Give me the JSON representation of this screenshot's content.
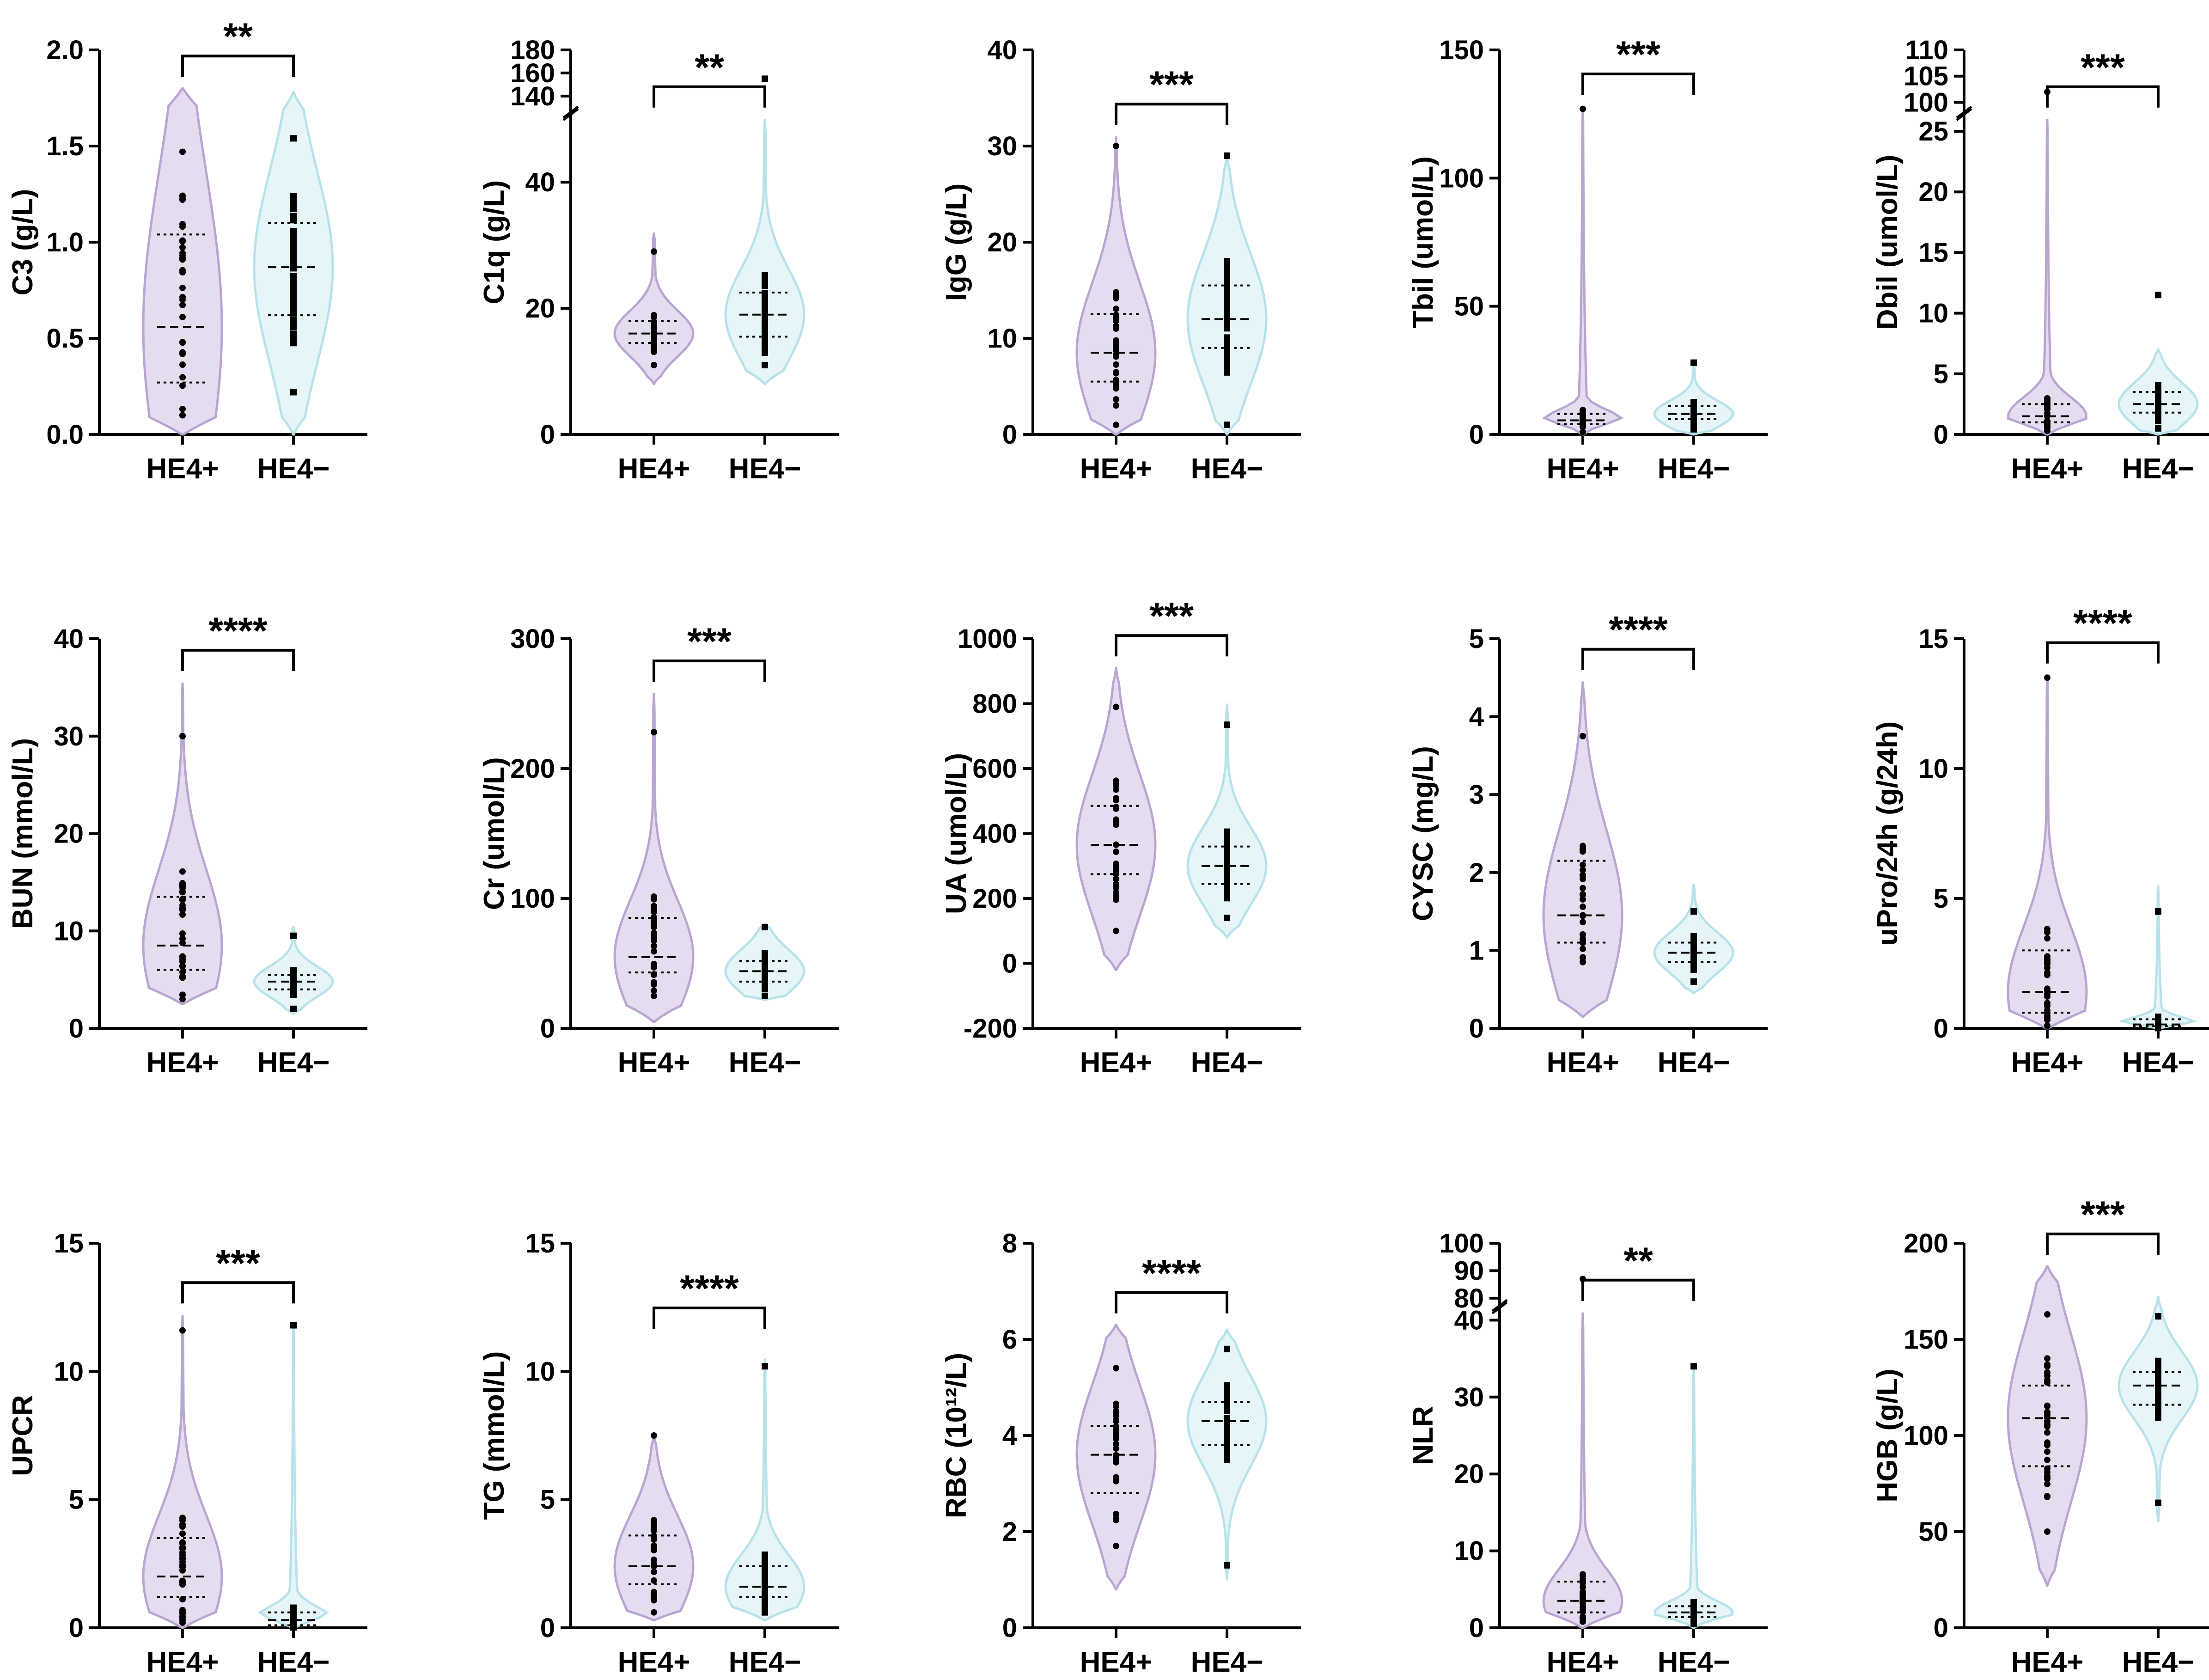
{
  "figure": {
    "description_free": true,
    "colors": {
      "he4_pos_fill": "#e6dcef",
      "he4_pos_stroke": "#b9a5d2",
      "he4_neg_fill": "#e6f5f8",
      "he4_neg_stroke": "#b7e2ea",
      "points": "#000000",
      "axes": "#000000"
    }
  },
  "chart_data": [
    {
      "id": "c3",
      "type": "violin",
      "ylabel": "C3 (g/L)",
      "categories": [
        "HE4+",
        "HE4−"
      ],
      "yticks": [
        0.0,
        0.5,
        1.0,
        1.5,
        2.0
      ],
      "tick_labels": [
        "0.0",
        "0.5",
        "1.0",
        "1.5",
        "2.0"
      ],
      "ylim": [
        0,
        2.0
      ],
      "significance": "**",
      "groups": [
        {
          "name": "HE4+",
          "median": 0.56,
          "q1": 0.27,
          "q3": 1.04,
          "min": 0.1,
          "max": 1.47,
          "vmin": 0.0,
          "vmax": 1.8
        },
        {
          "name": "HE4−",
          "median": 0.87,
          "q1": 0.62,
          "q3": 1.1,
          "min": 0.22,
          "max": 1.54,
          "vmin": 0.0,
          "vmax": 1.78
        }
      ]
    },
    {
      "id": "c1q",
      "type": "violin",
      "ylabel": "C1q (g/L)",
      "categories": [
        "HE4+",
        "HE4−"
      ],
      "yticks": [
        0,
        20,
        40,
        140,
        160,
        180
      ],
      "tick_labels": [
        "0",
        "20",
        "40",
        "140",
        "160",
        "180"
      ],
      "ylim": [
        0,
        180
      ],
      "axis_break": [
        50,
        130
      ],
      "significance": "**",
      "groups": [
        {
          "name": "HE4+",
          "median": 16,
          "q1": 14.5,
          "q3": 18,
          "min": 11,
          "max": 29,
          "vmin": 8,
          "vmax": 32
        },
        {
          "name": "HE4−",
          "median": 19,
          "q1": 15.5,
          "q3": 22.5,
          "min": 11,
          "max": 155,
          "vmin": 8,
          "vmax": 50
        }
      ]
    },
    {
      "id": "igg",
      "type": "violin",
      "ylabel": "IgG (g/L)",
      "categories": [
        "HE4+",
        "HE4−"
      ],
      "yticks": [
        0,
        10,
        20,
        30,
        40
      ],
      "tick_labels": [
        "0",
        "10",
        "20",
        "30",
        "40"
      ],
      "ylim": [
        0,
        40
      ],
      "significance": "***",
      "groups": [
        {
          "name": "HE4+",
          "median": 8.5,
          "q1": 5.5,
          "q3": 12.5,
          "min": 1,
          "max": 30,
          "vmin": 0,
          "vmax": 31
        },
        {
          "name": "HE4−",
          "median": 12,
          "q1": 9,
          "q3": 15.5,
          "min": 1,
          "max": 29,
          "vmin": 0,
          "vmax": 29
        }
      ]
    },
    {
      "id": "tbil",
      "type": "violin",
      "ylabel": "Tbil (umol/L)",
      "categories": [
        "HE4+",
        "HE4−"
      ],
      "yticks": [
        0,
        50,
        100,
        150
      ],
      "tick_labels": [
        "0",
        "50",
        "100",
        "150"
      ],
      "ylim": [
        0,
        150
      ],
      "significance": "***",
      "groups": [
        {
          "name": "HE4+",
          "median": 5.5,
          "q1": 4,
          "q3": 8,
          "min": 1,
          "max": 127,
          "vmin": 0,
          "vmax": 128
        },
        {
          "name": "HE4−",
          "median": 8,
          "q1": 6,
          "q3": 11,
          "min": 2,
          "max": 28,
          "vmin": 0,
          "vmax": 28
        }
      ]
    },
    {
      "id": "dbil",
      "type": "violin",
      "ylabel": "Dbil (umol/L)",
      "categories": [
        "HE4+",
        "HE4−"
      ],
      "yticks": [
        0,
        5,
        10,
        15,
        20,
        25,
        100,
        105,
        110
      ],
      "tick_labels": [
        "0",
        "5",
        "10",
        "15",
        "20",
        "25",
        "100",
        "105",
        "110"
      ],
      "ylim": [
        0,
        110
      ],
      "axis_break": [
        26,
        99
      ],
      "significance": "***",
      "groups": [
        {
          "name": "HE4+",
          "median": 1.5,
          "q1": 1,
          "q3": 2.5,
          "min": 0.3,
          "max": 102,
          "vmin": 0,
          "vmax": 26
        },
        {
          "name": "HE4−",
          "median": 2.5,
          "q1": 1.8,
          "q3": 3.5,
          "min": 0.5,
          "max": 11.5,
          "vmin": 0,
          "vmax": 7
        }
      ]
    },
    {
      "id": "bun",
      "type": "violin",
      "ylabel": "BUN (mmol/L)",
      "categories": [
        "HE4+",
        "HE4−"
      ],
      "yticks": [
        0,
        10,
        20,
        30,
        40
      ],
      "tick_labels": [
        "0",
        "10",
        "20",
        "30",
        "40"
      ],
      "ylim": [
        0,
        40
      ],
      "significance": "****",
      "groups": [
        {
          "name": "HE4+",
          "median": 8.5,
          "q1": 6,
          "q3": 13.5,
          "min": 3,
          "max": 30,
          "vmin": 2.5,
          "vmax": 35.5
        },
        {
          "name": "HE4−",
          "median": 4.8,
          "q1": 4,
          "q3": 5.5,
          "min": 2,
          "max": 9.5,
          "vmin": 1.5,
          "vmax": 10.5
        }
      ]
    },
    {
      "id": "cr",
      "type": "violin",
      "ylabel": "Cr (umol/L)",
      "categories": [
        "HE4+",
        "HE4−"
      ],
      "yticks": [
        0,
        100,
        200,
        300
      ],
      "tick_labels": [
        "0",
        "100",
        "200",
        "300"
      ],
      "ylim": [
        0,
        300
      ],
      "significance": "***",
      "groups": [
        {
          "name": "HE4+",
          "median": 55,
          "q1": 43,
          "q3": 85,
          "min": 25,
          "max": 228,
          "vmin": 5,
          "vmax": 258
        },
        {
          "name": "HE4−",
          "median": 44,
          "q1": 36,
          "q3": 52,
          "min": 25,
          "max": 78,
          "vmin": 22,
          "vmax": 80
        }
      ]
    },
    {
      "id": "ua",
      "type": "violin",
      "ylabel": "UA (umol/L)",
      "categories": [
        "HE4+",
        "HE4−"
      ],
      "yticks": [
        -200,
        0,
        200,
        400,
        600,
        800,
        1000
      ],
      "tick_labels": [
        "-200",
        "0",
        "200",
        "400",
        "600",
        "800",
        "1000"
      ],
      "ylim": [
        -200,
        1000
      ],
      "significance": "***",
      "groups": [
        {
          "name": "HE4+",
          "median": 365,
          "q1": 275,
          "q3": 485,
          "min": 100,
          "max": 790,
          "vmin": -20,
          "vmax": 910
        },
        {
          "name": "HE4−",
          "median": 300,
          "q1": 245,
          "q3": 360,
          "min": 140,
          "max": 735,
          "vmin": 80,
          "vmax": 800
        }
      ]
    },
    {
      "id": "cysc",
      "type": "violin",
      "ylabel": "CYSC (mg/L)",
      "categories": [
        "HE4+",
        "HE4−"
      ],
      "yticks": [
        0,
        1,
        2,
        3,
        4,
        5
      ],
      "tick_labels": [
        "0",
        "1",
        "2",
        "3",
        "4",
        "5"
      ],
      "ylim": [
        0,
        5
      ],
      "significance": "****",
      "groups": [
        {
          "name": "HE4+",
          "median": 1.45,
          "q1": 1.1,
          "q3": 2.15,
          "min": 0.85,
          "max": 3.75,
          "vmin": 0.15,
          "vmax": 4.45
        },
        {
          "name": "HE4−",
          "median": 0.97,
          "q1": 0.85,
          "q3": 1.1,
          "min": 0.6,
          "max": 1.5,
          "vmin": 0.45,
          "vmax": 1.85
        }
      ]
    },
    {
      "id": "upro",
      "type": "violin",
      "ylabel": "uPro/24h (g/24h)",
      "categories": [
        "HE4+",
        "HE4−"
      ],
      "yticks": [
        0,
        5,
        10,
        15
      ],
      "tick_labels": [
        "0",
        "5",
        "10",
        "15"
      ],
      "ylim": [
        0,
        15
      ],
      "significance": "****",
      "groups": [
        {
          "name": "HE4+",
          "median": 1.4,
          "q1": 0.6,
          "q3": 3,
          "min": 0.1,
          "max": 13.5,
          "vmin": 0,
          "vmax": 13.6
        },
        {
          "name": "HE4−",
          "median": 0.15,
          "q1": 0.08,
          "q3": 0.35,
          "min": 0.01,
          "max": 4.5,
          "vmin": 0,
          "vmax": 5.5
        }
      ]
    },
    {
      "id": "upcr",
      "type": "violin",
      "ylabel": "UPCR",
      "categories": [
        "HE4+",
        "HE4−"
      ],
      "yticks": [
        0,
        5,
        10,
        15
      ],
      "tick_labels": [
        "0",
        "5",
        "10",
        "15"
      ],
      "ylim": [
        0,
        15
      ],
      "significance": "***",
      "groups": [
        {
          "name": "HE4+",
          "median": 2,
          "q1": 1.2,
          "q3": 3.5,
          "min": 0.2,
          "max": 11.6,
          "vmin": 0,
          "vmax": 12.2
        },
        {
          "name": "HE4−",
          "median": 0.3,
          "q1": 0.1,
          "q3": 0.6,
          "min": 0.02,
          "max": 11.8,
          "vmin": 0,
          "vmax": 11.9
        }
      ]
    },
    {
      "id": "tg",
      "type": "violin",
      "ylabel": "TG (mmol/L)",
      "categories": [
        "HE4+",
        "HE4−"
      ],
      "yticks": [
        0,
        5,
        10,
        15
      ],
      "tick_labels": [
        "0",
        "5",
        "10",
        "15"
      ],
      "ylim": [
        0,
        15
      ],
      "significance": "****",
      "groups": [
        {
          "name": "HE4+",
          "median": 2.4,
          "q1": 1.7,
          "q3": 3.6,
          "min": 0.6,
          "max": 7.5,
          "vmin": 0.3,
          "vmax": 7.5
        },
        {
          "name": "HE4−",
          "median": 1.6,
          "q1": 1.2,
          "q3": 2.4,
          "min": 0.6,
          "max": 10.2,
          "vmin": 0.3,
          "vmax": 10.5
        }
      ]
    },
    {
      "id": "rbc",
      "type": "violin",
      "ylabel": "RBC (10¹²/L)",
      "categories": [
        "HE4+",
        "HE4−"
      ],
      "yticks": [
        0,
        2,
        4,
        6,
        8
      ],
      "tick_labels": [
        "0",
        "2",
        "4",
        "6",
        "8"
      ],
      "ylim": [
        0,
        8
      ],
      "significance": "****",
      "groups": [
        {
          "name": "HE4+",
          "median": 3.6,
          "q1": 2.8,
          "q3": 4.2,
          "min": 1.7,
          "max": 5.4,
          "vmin": 0.8,
          "vmax": 6.3
        },
        {
          "name": "HE4−",
          "median": 4.3,
          "q1": 3.8,
          "q3": 4.7,
          "min": 1.3,
          "max": 5.8,
          "vmin": 1,
          "vmax": 6.2
        }
      ]
    },
    {
      "id": "nlr",
      "type": "violin",
      "ylabel": "NLR",
      "categories": [
        "HE4+",
        "HE4−"
      ],
      "yticks": [
        0,
        10,
        20,
        30,
        40,
        80,
        90,
        100
      ],
      "tick_labels": [
        "0",
        "10",
        "20",
        "30",
        "40",
        "80",
        "90",
        "100"
      ],
      "ylim": [
        0,
        100
      ],
      "axis_break": [
        41,
        79
      ],
      "significance": "**",
      "groups": [
        {
          "name": "HE4+",
          "median": 3.5,
          "q1": 2,
          "q3": 6,
          "min": 0.8,
          "max": 87,
          "vmin": 0,
          "vmax": 41
        },
        {
          "name": "HE4−",
          "median": 2,
          "q1": 1.4,
          "q3": 2.8,
          "min": 0.5,
          "max": 34,
          "vmin": 0,
          "vmax": 34
        }
      ]
    },
    {
      "id": "hgb",
      "type": "violin",
      "ylabel": "HGB (g/L)",
      "categories": [
        "HE4+",
        "HE4−"
      ],
      "yticks": [
        0,
        50,
        100,
        150,
        200
      ],
      "tick_labels": [
        "0",
        "50",
        "100",
        "150",
        "200"
      ],
      "ylim": [
        0,
        200
      ],
      "significance": "***",
      "groups": [
        {
          "name": "HE4+",
          "median": 109,
          "q1": 84,
          "q3": 126,
          "min": 50,
          "max": 163,
          "vmin": 22,
          "vmax": 188
        },
        {
          "name": "HE4−",
          "median": 126,
          "q1": 116,
          "q3": 133,
          "min": 65,
          "max": 162,
          "vmin": 55,
          "vmax": 172
        }
      ]
    }
  ]
}
